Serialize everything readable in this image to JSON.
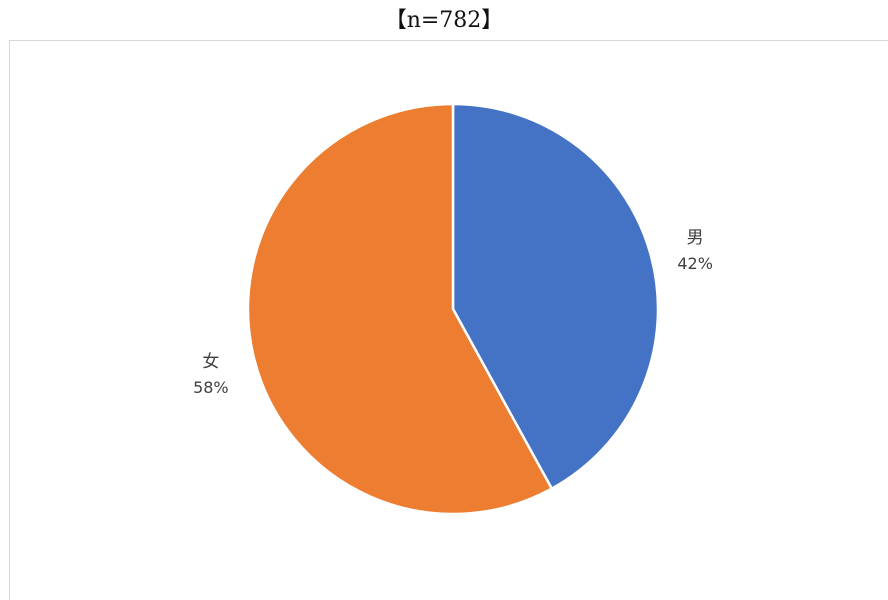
{
  "chart_data": {
    "type": "pie",
    "title": "【n=782】",
    "slices": [
      {
        "label": "男",
        "value": 42,
        "value_label": "42%",
        "color": "#4472c4"
      },
      {
        "label": "女",
        "value": 58,
        "value_label": "58%",
        "color": "#ed7d31"
      }
    ],
    "start_angle_deg": 0,
    "direction": "clockwise",
    "legend": "none",
    "data_labels": "outside"
  }
}
